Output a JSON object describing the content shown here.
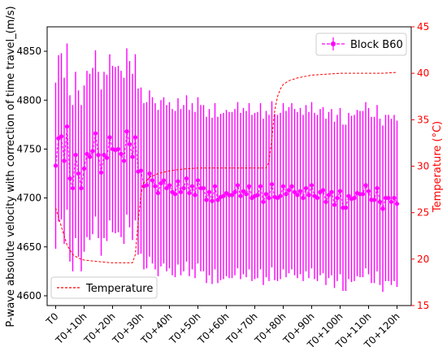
{
  "chart_data": {
    "type": "line",
    "ylabel": "P-wave absolute velocity with correction of time travel_(m/s)",
    "y2label": "Temperature (°C)",
    "x_ticks": [
      "T0",
      "T0+10h",
      "T0+20h",
      "T0+30h",
      "T0+40h",
      "T0+50h",
      "T0+60h",
      "T0+70h",
      "T0+80h",
      "T0+90h",
      "T0+100h",
      "T0+110h",
      "T0+120h"
    ],
    "y_ticks": [
      "4600",
      "4650",
      "4700",
      "4750",
      "4800",
      "4850"
    ],
    "y2_ticks": [
      "15",
      "20",
      "25",
      "30",
      "35",
      "40",
      "45"
    ],
    "ylim": [
      4590,
      4875
    ],
    "y2lim": [
      15,
      45
    ],
    "xlim": [
      -3,
      125
    ],
    "grid": false,
    "colors": {
      "velocity": "#ff00ff",
      "temperature": "#ff0000",
      "axis_right": "#ff0000"
    },
    "legend": [
      {
        "label": "Block B60",
        "placement": "top-right"
      },
      {
        "label": "Temperature",
        "placement": "bottom-left"
      }
    ],
    "series": [
      {
        "name": "Block B60",
        "x": [
          0,
          1,
          2,
          3,
          4,
          5,
          6,
          7,
          8,
          9,
          10,
          11,
          12,
          13,
          14,
          15,
          16,
          17,
          18,
          19,
          20,
          21,
          22,
          23,
          24,
          25,
          26,
          27,
          28,
          29,
          30,
          31,
          32,
          33,
          34,
          35,
          36,
          37,
          38,
          39,
          40,
          41,
          42,
          43,
          44,
          45,
          46,
          47,
          48,
          49,
          50,
          51,
          52,
          53,
          54,
          55,
          56,
          57,
          58,
          59,
          60,
          61,
          62,
          63,
          64,
          65,
          66,
          67,
          68,
          69,
          70,
          71,
          72,
          73,
          74,
          75,
          76,
          77,
          78,
          79,
          80,
          81,
          82,
          83,
          84,
          85,
          86,
          87,
          88,
          89,
          90,
          91,
          92,
          93,
          94,
          95,
          96,
          97,
          98,
          99,
          100,
          101,
          102,
          103,
          104,
          105,
          106,
          107,
          108,
          109,
          110,
          111,
          112,
          113,
          114,
          115,
          116,
          117,
          118,
          119,
          120
        ],
        "values": [
          4733,
          4761,
          4763,
          4738,
          4773,
          4720,
          4710,
          4744,
          4725,
          4710,
          4730,
          4745,
          4742,
          4748,
          4766,
          4744,
          4726,
          4744,
          4741,
          4762,
          4750,
          4749,
          4750,
          4745,
          4738,
          4768,
          4755,
          4742,
          4762,
          4727,
          4728,
          4712,
          4713,
          4725,
          4718,
          4712,
          4705,
          4715,
          4718,
          4710,
          4713,
          4706,
          4704,
          4717,
          4706,
          4710,
          4720,
          4705,
          4712,
          4703,
          4718,
          4710,
          4710,
          4698,
          4706,
          4697,
          4712,
          4698,
          4701,
          4702,
          4705,
          4703,
          4703,
          4706,
          4713,
          4702,
          4707,
          4704,
          4712,
          4700,
          4702,
          4703,
          4712,
          4696,
          4704,
          4700,
          4714,
          4701,
          4700,
          4702,
          4712,
          4704,
          4708,
          4712,
          4706,
          4703,
          4707,
          4700,
          4710,
          4703,
          4713,
          4702,
          4700,
          4706,
          4708,
          4696,
          4703,
          4706,
          4693,
          4700,
          4707,
          4690,
          4690,
          4702,
          4699,
          4700,
          4705,
          4704,
          4704,
          4713,
          4707,
          4698,
          4698,
          4710,
          4696,
          4689,
          4700,
          4700,
          4696,
          4700,
          4694
        ],
        "error": 85
      },
      {
        "name": "Temperature",
        "x": [
          0,
          2,
          4,
          6,
          8,
          10,
          13,
          16,
          20,
          24,
          27,
          28,
          29,
          30,
          31,
          33,
          36,
          40,
          45,
          50,
          55,
          60,
          65,
          70,
          74,
          75,
          76,
          77,
          78,
          79,
          80,
          82,
          85,
          90,
          95,
          100,
          105,
          110,
          115,
          120
        ],
        "values": [
          25.5,
          23.5,
          21.5,
          20.5,
          20.1,
          19.9,
          19.8,
          19.7,
          19.6,
          19.6,
          19.6,
          20.5,
          24,
          27,
          28.2,
          28.8,
          29.2,
          29.5,
          29.7,
          29.8,
          29.8,
          29.8,
          29.8,
          29.8,
          29.8,
          30.5,
          33,
          36,
          37.5,
          38.3,
          38.8,
          39.2,
          39.5,
          39.8,
          39.9,
          40,
          40,
          40,
          40,
          40.1
        ]
      }
    ]
  }
}
